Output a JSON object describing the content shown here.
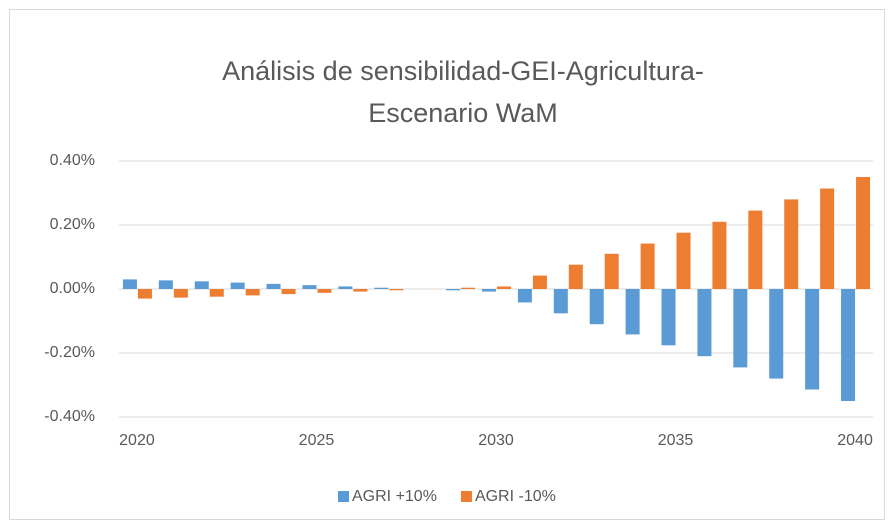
{
  "chart_data": {
    "type": "bar",
    "title": [
      "Análisis de sensibilidad-GEI-Agricultura-",
      "Escenario WaM"
    ],
    "categories": [
      "2020",
      null,
      null,
      null,
      null,
      "2025",
      null,
      null,
      null,
      null,
      "2030",
      null,
      null,
      null,
      null,
      "2035",
      null,
      null,
      null,
      null,
      "2040"
    ],
    "series": [
      {
        "name": "AGRI +10%",
        "color": "#5b9bd5",
        "values": [
          0.03,
          0.027,
          0.024,
          0.02,
          0.016,
          0.012,
          0.008,
          0.004,
          0.0,
          -0.004,
          -0.008,
          -0.042,
          -0.076,
          -0.11,
          -0.142,
          -0.176,
          -0.21,
          -0.245,
          -0.28,
          -0.314,
          -0.35
        ]
      },
      {
        "name": "AGRI -10%",
        "color": "#ed7d31",
        "values": [
          -0.03,
          -0.027,
          -0.024,
          -0.02,
          -0.016,
          -0.012,
          -0.008,
          -0.004,
          0.0,
          0.004,
          0.008,
          0.042,
          0.076,
          0.11,
          0.142,
          0.176,
          0.21,
          0.245,
          0.28,
          0.314,
          0.35
        ]
      }
    ],
    "ylim": [
      -0.4,
      0.4
    ],
    "yticks": [
      {
        "value": -0.4,
        "label": "-0.40%"
      },
      {
        "value": -0.2,
        "label": "-0.20%"
      },
      {
        "value": 0,
        "label": "0.00%"
      },
      {
        "value": 0.2,
        "label": "0.20%"
      },
      {
        "value": 0.4,
        "label": "0.40%"
      }
    ],
    "grid": true,
    "legend": "bottom"
  }
}
